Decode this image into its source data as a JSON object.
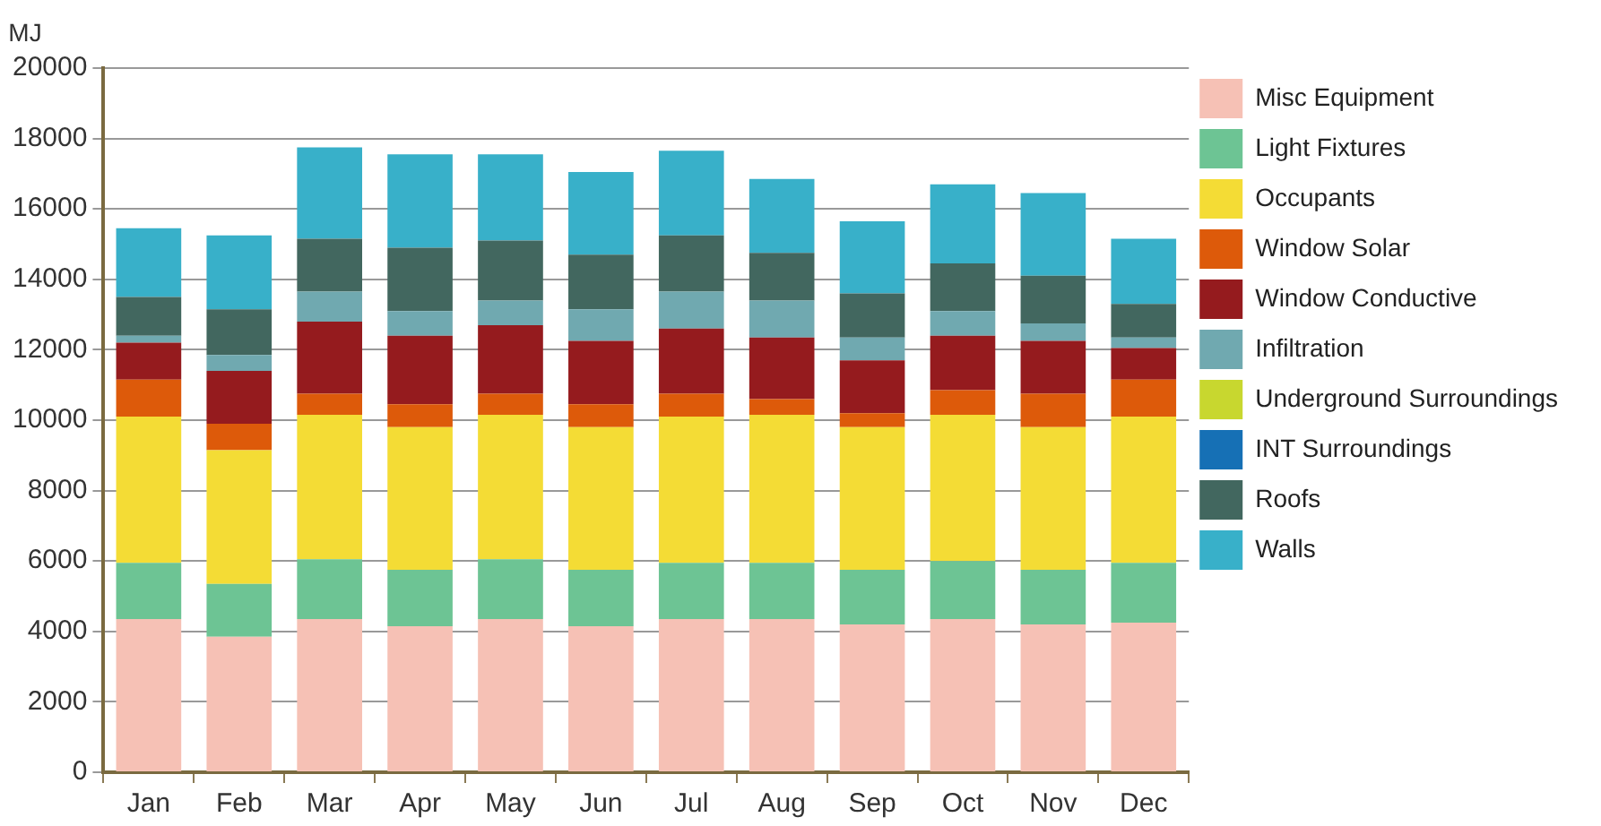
{
  "chart_data": {
    "type": "bar",
    "stacked": true,
    "ylabel": "MJ",
    "categories": [
      "Jan",
      "Feb",
      "Mar",
      "Apr",
      "May",
      "Jun",
      "Jul",
      "Aug",
      "Sep",
      "Oct",
      "Nov",
      "Dec"
    ],
    "series": [
      {
        "name": "Misc Equipment",
        "color": "#f6c1b5",
        "values": [
          4350,
          3850,
          4350,
          4150,
          4350,
          4150,
          4350,
          4350,
          4200,
          4350,
          4200,
          4250
        ]
      },
      {
        "name": "Light Fixtures",
        "color": "#6dc494",
        "values": [
          1600,
          1500,
          1700,
          1600,
          1700,
          1600,
          1600,
          1600,
          1550,
          1650,
          1550,
          1700
        ]
      },
      {
        "name": "Occupants",
        "color": "#f4dc35",
        "values": [
          4150,
          3800,
          4100,
          4050,
          4100,
          4050,
          4150,
          4200,
          4050,
          4150,
          4050,
          4150
        ]
      },
      {
        "name": "Window Solar",
        "color": "#dd5a0a",
        "values": [
          1050,
          750,
          600,
          650,
          600,
          650,
          650,
          450,
          400,
          700,
          950,
          1050
        ]
      },
      {
        "name": "Window Conductive",
        "color": "#951b1e",
        "values": [
          1050,
          1500,
          2050,
          1950,
          1950,
          1800,
          1850,
          1750,
          1500,
          1550,
          1500,
          900
        ]
      },
      {
        "name": "Infiltration",
        "color": "#70a9b0",
        "values": [
          200,
          450,
          850,
          700,
          700,
          900,
          1050,
          1050,
          650,
          700,
          500,
          300
        ]
      },
      {
        "name": "Underground Surroundings",
        "color": "#c8d72f",
        "values": [
          0,
          0,
          0,
          0,
          0,
          0,
          0,
          0,
          0,
          0,
          0,
          0
        ]
      },
      {
        "name": "INT Surroundings",
        "color": "#1670b5",
        "values": [
          0,
          0,
          0,
          0,
          0,
          0,
          0,
          0,
          0,
          0,
          0,
          0
        ]
      },
      {
        "name": "Roofs",
        "color": "#42675f",
        "values": [
          1100,
          1300,
          1500,
          1800,
          1700,
          1550,
          1600,
          1350,
          1250,
          1350,
          1350,
          950
        ]
      },
      {
        "name": "Walls",
        "color": "#38b0c9",
        "values": [
          1950,
          2100,
          2600,
          2650,
          2450,
          2350,
          2400,
          2100,
          2050,
          2250,
          2350,
          1850
        ]
      }
    ],
    "ylim": [
      0,
      20000
    ],
    "yticks": [
      0,
      2000,
      4000,
      6000,
      8000,
      10000,
      12000,
      14000,
      16000,
      18000,
      20000
    ],
    "grid": "y",
    "legend": "right"
  }
}
